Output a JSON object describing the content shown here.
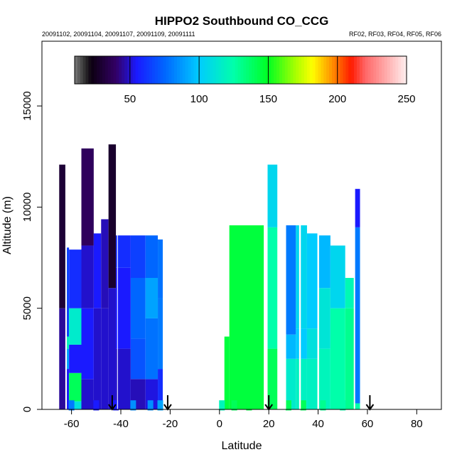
{
  "chart_data": {
    "type": "heatmap",
    "title": "HIPPO2 Southbound CO_CCG",
    "subtitle_left": "20091102, 20091104, 20091107, 20091109, 20091111",
    "subtitle_right": "RF02, RF03, RF04, RF05, RF06",
    "xlabel": "Latitude",
    "ylabel": "Altitude (m)",
    "xlim": [
      -72,
      90
    ],
    "ylim": [
      0,
      18200
    ],
    "xticks": [
      -60,
      -40,
      -20,
      0,
      20,
      40,
      60,
      80
    ],
    "yticks": [
      0,
      5000,
      10000,
      15000
    ],
    "colorbar": {
      "range": [
        10,
        250
      ],
      "ticks": [
        50,
        100,
        150,
        200,
        250
      ],
      "stops": [
        {
          "v": 10,
          "c": "#7a7a7a"
        },
        {
          "v": 18,
          "c": "#2a2a2a"
        },
        {
          "v": 22,
          "c": "#0c0010"
        },
        {
          "v": 40,
          "c": "#330066"
        },
        {
          "v": 55,
          "c": "#1a1aff"
        },
        {
          "v": 75,
          "c": "#0066ff"
        },
        {
          "v": 100,
          "c": "#00ccff"
        },
        {
          "v": 125,
          "c": "#00ffaa"
        },
        {
          "v": 150,
          "c": "#00ff22"
        },
        {
          "v": 170,
          "c": "#aaff00"
        },
        {
          "v": 182,
          "c": "#ffff00"
        },
        {
          "v": 195,
          "c": "#ff9900"
        },
        {
          "v": 210,
          "c": "#ff1a00"
        },
        {
          "v": 220,
          "c": "#ff6666"
        },
        {
          "v": 235,
          "c": "#ffaaaa"
        },
        {
          "v": 250,
          "c": "#fff0f0"
        }
      ]
    },
    "profiles": [
      {
        "lat": [
          -65,
          -62.5
        ],
        "layers": [
          [
            0,
            5000,
            45
          ],
          [
            5000,
            12100,
            30
          ]
        ]
      },
      {
        "lat": [
          -62.5,
          -61
        ],
        "layers": [
          [
            0,
            2000,
            55
          ],
          [
            2000,
            3000,
            90
          ],
          [
            3000,
            3600,
            120
          ],
          [
            3600,
            8000,
            65
          ]
        ]
      },
      {
        "lat": [
          -61,
          -56
        ],
        "layers": [
          [
            0,
            400,
            110
          ],
          [
            400,
            1800,
            140
          ],
          [
            1800,
            3200,
            55
          ],
          [
            3200,
            5000,
            115
          ],
          [
            5000,
            7900,
            60
          ]
        ]
      },
      {
        "lat": [
          -56,
          -51
        ],
        "layers": [
          [
            0,
            1500,
            50
          ],
          [
            1500,
            5000,
            55
          ],
          [
            5000,
            8100,
            50
          ],
          [
            8100,
            12900,
            38
          ]
        ]
      },
      {
        "lat": [
          -51,
          -48
        ],
        "layers": [
          [
            0,
            5000,
            50
          ],
          [
            5000,
            8700,
            55
          ]
        ]
      },
      {
        "lat": [
          -48,
          -45
        ],
        "layers": [
          [
            0,
            5000,
            50
          ],
          [
            5000,
            9400,
            48
          ]
        ]
      },
      {
        "lat": [
          -45,
          -42
        ],
        "layers": [
          [
            0,
            6000,
            50
          ],
          [
            6000,
            13100,
            28
          ]
        ]
      },
      {
        "lat": [
          -42,
          -36
        ],
        "layers": [
          [
            0,
            3000,
            50
          ],
          [
            3000,
            7000,
            55
          ],
          [
            7000,
            8600,
            60
          ]
        ]
      },
      {
        "lat": [
          -36,
          -30
        ],
        "layers": [
          [
            0,
            1500,
            48
          ],
          [
            1500,
            3500,
            70
          ],
          [
            3500,
            6500,
            75
          ],
          [
            6500,
            8600,
            65
          ]
        ]
      },
      {
        "lat": [
          -30,
          -25
        ],
        "layers": [
          [
            0,
            1500,
            52
          ],
          [
            1500,
            4500,
            78
          ],
          [
            4500,
            6500,
            90
          ],
          [
            6500,
            8600,
            75
          ]
        ]
      },
      {
        "lat": [
          -25,
          -23
        ],
        "layers": [
          [
            0,
            2000,
            60
          ],
          [
            2000,
            5500,
            80
          ],
          [
            5500,
            8400,
            78
          ]
        ]
      },
      {
        "lat": [
          2,
          4
        ],
        "layers": [
          [
            0,
            3600,
            145
          ]
        ]
      },
      {
        "lat": [
          4,
          18
        ],
        "layers": [
          [
            0,
            9100,
            145
          ]
        ]
      },
      {
        "lat": [
          19.5,
          23.5
        ],
        "layers": [
          [
            0,
            3000,
            140
          ],
          [
            3000,
            9000,
            125
          ],
          [
            9000,
            12100,
            105
          ]
        ]
      },
      {
        "lat": [
          27,
          31
        ],
        "layers": [
          [
            0,
            2500,
            115
          ],
          [
            2500,
            3700,
            95
          ],
          [
            3700,
            9100,
            80
          ]
        ]
      },
      {
        "lat": [
          31,
          35.5
        ],
        "layers": [
          [
            0,
            2500,
            118
          ],
          [
            2500,
            4000,
            100
          ],
          [
            4000,
            9100,
            105
          ]
        ]
      },
      {
        "lat": [
          35.5,
          40
        ],
        "layers": [
          [
            0,
            2500,
            118
          ],
          [
            2500,
            4000,
            110
          ],
          [
            4000,
            8700,
            100
          ]
        ]
      },
      {
        "lat": [
          40,
          45
        ],
        "layers": [
          [
            0,
            3000,
            120
          ],
          [
            3000,
            6000,
            112
          ],
          [
            6000,
            8600,
            95
          ]
        ]
      },
      {
        "lat": [
          45,
          51
        ],
        "layers": [
          [
            0,
            5000,
            125
          ],
          [
            5000,
            8100,
            105
          ]
        ]
      },
      {
        "lat": [
          51,
          54.5
        ],
        "layers": [
          [
            0,
            5000,
            130
          ],
          [
            5000,
            6500,
            122
          ]
        ]
      },
      {
        "lat": [
          55,
          57
        ],
        "layers": [
          [
            0,
            300,
            125
          ],
          [
            300,
            9000,
            80
          ],
          [
            9000,
            10900,
            55
          ]
        ]
      }
    ],
    "gaps": [
      [
        -62.5,
        -61.9
      ],
      [
        -41.5,
        -41.2
      ],
      [
        18,
        19.5
      ],
      [
        23.5,
        27
      ],
      [
        32.3,
        33.0
      ],
      [
        39.7,
        40.4
      ],
      [
        54.5,
        55
      ]
    ],
    "surface_points": [
      {
        "lat": -60,
        "alt": 200,
        "v": 80
      },
      {
        "lat": -50,
        "alt": 200,
        "v": 55
      },
      {
        "lat": -42,
        "alt": 200,
        "v": 55
      },
      {
        "lat": -35,
        "alt": 200,
        "v": 85
      },
      {
        "lat": -28,
        "alt": 200,
        "v": 85
      },
      {
        "lat": -24,
        "alt": 200,
        "v": 90
      },
      {
        "lat": 1,
        "alt": 200,
        "v": 120
      },
      {
        "lat": 6,
        "alt": 200,
        "v": 140
      },
      {
        "lat": 12,
        "alt": 200,
        "v": 145
      },
      {
        "lat": 28,
        "alt": 200,
        "v": 140
      },
      {
        "lat": 34,
        "alt": 200,
        "v": 140
      },
      {
        "lat": 42,
        "alt": 200,
        "v": 130
      },
      {
        "lat": 50,
        "alt": 200,
        "v": 125
      }
    ],
    "arrows_lat": [
      -43.5,
      -21,
      20,
      61
    ]
  }
}
